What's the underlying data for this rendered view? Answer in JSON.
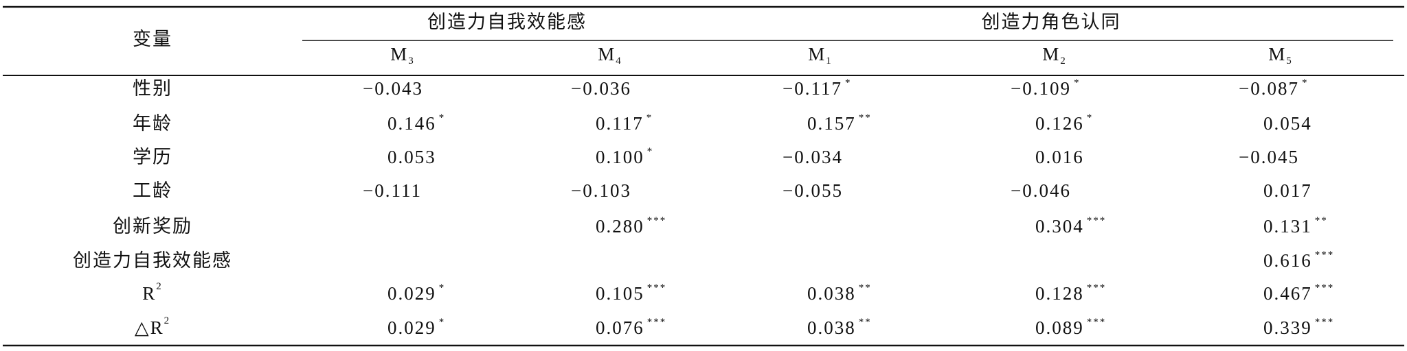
{
  "table": {
    "header": {
      "variable": "变量",
      "groups": [
        "创造力自我效能感",
        "创造力角色认同"
      ],
      "models": [
        {
          "name": "M",
          "sub": "3"
        },
        {
          "name": "M",
          "sub": "4"
        },
        {
          "name": "M",
          "sub": "1"
        },
        {
          "name": "M",
          "sub": "2"
        },
        {
          "name": "M",
          "sub": "5"
        }
      ]
    },
    "rows": [
      {
        "label": "性别",
        "cells": [
          {
            "value": "−0.043"
          },
          {
            "value": "−0.036"
          },
          {
            "value": "−0.117",
            "stars": "*"
          },
          {
            "value": "−0.109",
            "stars": "*"
          },
          {
            "value": "−0.087",
            "stars": "*"
          }
        ]
      },
      {
        "label": "年龄",
        "cells": [
          {
            "value": "0.146",
            "stars": "*"
          },
          {
            "value": "0.117",
            "stars": "*"
          },
          {
            "value": "0.157",
            "stars": "**"
          },
          {
            "value": "0.126",
            "stars": "*"
          },
          {
            "value": "0.054"
          }
        ]
      },
      {
        "label": "学历",
        "cells": [
          {
            "value": "0.053"
          },
          {
            "value": "0.100",
            "stars": "*"
          },
          {
            "value": "−0.034"
          },
          {
            "value": "0.016"
          },
          {
            "value": "−0.045"
          }
        ]
      },
      {
        "label": "工龄",
        "cells": [
          {
            "value": "−0.111"
          },
          {
            "value": "−0.103"
          },
          {
            "value": "−0.055"
          },
          {
            "value": "−0.046"
          },
          {
            "value": "0.017"
          }
        ]
      },
      {
        "label": "创新奖励",
        "cells": [
          null,
          {
            "value": "0.280",
            "stars": "***"
          },
          null,
          {
            "value": "0.304",
            "stars": "***"
          },
          {
            "value": "0.131",
            "stars": "**"
          }
        ]
      },
      {
        "label": "创造力自我效能感",
        "cells": [
          null,
          null,
          null,
          null,
          {
            "value": "0.616",
            "stars": "***"
          }
        ]
      },
      {
        "label": {
          "name": "R",
          "sup": "2"
        },
        "cells": [
          {
            "value": "0.029",
            "stars": "*"
          },
          {
            "value": "0.105",
            "stars": "***"
          },
          {
            "value": "0.038",
            "stars": "**"
          },
          {
            "value": "0.128",
            "stars": "***"
          },
          {
            "value": "0.467",
            "stars": "***"
          }
        ]
      },
      {
        "label": {
          "name": "△R",
          "sup": "2"
        },
        "cells": [
          {
            "value": "0.029",
            "stars": "*"
          },
          {
            "value": "0.076",
            "stars": "***"
          },
          {
            "value": "0.038",
            "stars": "**"
          },
          {
            "value": "0.089",
            "stars": "***"
          },
          {
            "value": "0.339",
            "stars": "***"
          }
        ]
      }
    ]
  }
}
